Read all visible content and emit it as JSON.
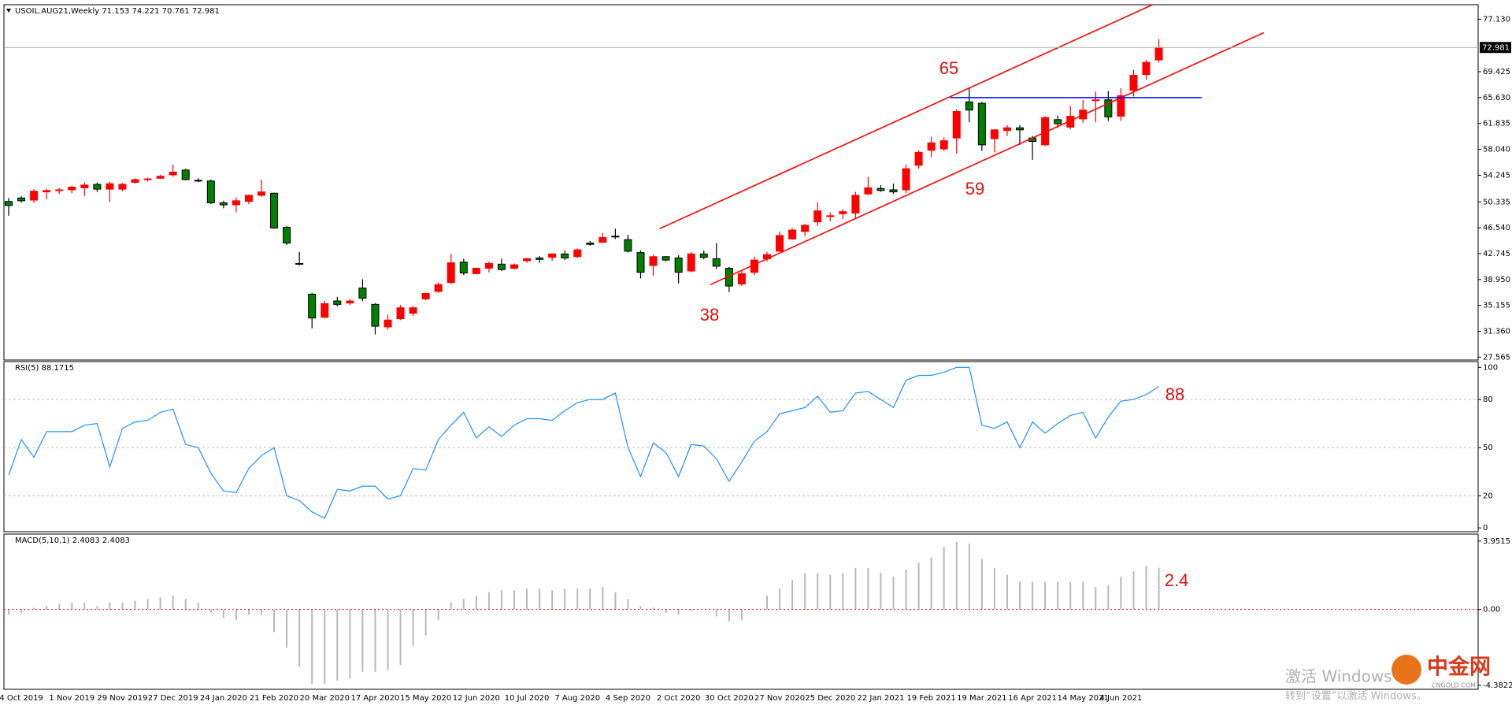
{
  "chart_data": [
    {
      "type": "candlestick",
      "title": "USOIL.AUG21,Weekly  71.153 74.221 70.761 72.981",
      "categories": [
        null,
        "4 Oct 2019",
        null,
        null,
        null,
        "1 Nov 2019",
        null,
        null,
        null,
        "29 Nov 2019",
        null,
        null,
        null,
        "27 Dec 2019",
        null,
        null,
        null,
        "24 Jan 2020",
        null,
        null,
        null,
        "21 Feb 2020",
        null,
        null,
        null,
        "20 Mar 2020",
        null,
        null,
        null,
        "17 Apr 2020",
        null,
        null,
        null,
        "15 May 2020",
        null,
        null,
        null,
        "12 Jun 2020",
        null,
        null,
        null,
        "10 Jul 2020",
        null,
        null,
        null,
        "7 Aug 2020",
        null,
        null,
        null,
        "4 Sep 2020",
        null,
        null,
        null,
        "2 Oct 2020",
        null,
        null,
        null,
        "30 Oct 2020",
        null,
        null,
        null,
        "27 Nov 2020",
        null,
        null,
        null,
        "25 Dec 2020",
        null,
        null,
        null,
        "22 Jan 2021",
        null,
        null,
        null,
        "19 Feb 2021",
        null,
        null,
        null,
        "19 Mar 2021",
        null,
        null,
        null,
        "16 Apr 2021",
        null,
        null,
        null,
        "14 May 2021",
        null,
        null,
        "4 Jun 2021",
        null,
        null,
        null
      ],
      "open": [
        50.4,
        50.9,
        50.6,
        51.8,
        52.0,
        52.1,
        52.4,
        52.9,
        52.2,
        52.2,
        53.2,
        53.6,
        53.8,
        54.3,
        55.0,
        53.5,
        53.4,
        50.2,
        49.9,
        50.4,
        51.3,
        51.6,
        46.6,
        41.3,
        36.8,
        33.4,
        35.8,
        35.5,
        37.7,
        35.3,
        32.0,
        33.2,
        34.0,
        36.1,
        37.2,
        38.5,
        41.5,
        39.8,
        40.6,
        41.2,
        40.6,
        41.7,
        42.1,
        42.2,
        42.7,
        42.3,
        44.3,
        44.4,
        45.3,
        44.8,
        42.9,
        41.0,
        42.3,
        42.1,
        40.2,
        42.7,
        42.0,
        40.6,
        38.3,
        40.0,
        42.0,
        43.1,
        44.9,
        46.0,
        47.4,
        48.2,
        48.6,
        48.7,
        51.5,
        52.3,
        52.1,
        52.1,
        55.7,
        57.9,
        58.1,
        59.7,
        65.0,
        64.8,
        59.6,
        60.8,
        61.2,
        59.7,
        58.7,
        62.4,
        61.3,
        62.5,
        65.2,
        65.3,
        62.9,
        66.7,
        69.0,
        71.153
      ],
      "high": [
        50.9,
        51.2,
        52.2,
        52.3,
        52.4,
        52.7,
        53.2,
        53.2,
        53.3,
        53.1,
        53.8,
        53.9,
        54.3,
        55.8,
        55.2,
        53.8,
        53.6,
        50.5,
        51.0,
        51.4,
        53.6,
        51.7,
        46.8,
        43.0,
        37.0,
        35.8,
        36.4,
        36.1,
        39.0,
        35.5,
        33.8,
        35.2,
        35.1,
        37.0,
        38.5,
        42.7,
        42.0,
        40.7,
        41.6,
        42.0,
        41.3,
        42.1,
        42.4,
        42.8,
        43.2,
        43.5,
        44.6,
        45.8,
        46.4,
        45.5,
        43.2,
        42.6,
        42.4,
        42.5,
        43.0,
        43.2,
        44.3,
        40.8,
        40.3,
        42.3,
        43.0,
        46.0,
        46.5,
        47.1,
        50.3,
        48.8,
        49.3,
        51.8,
        54.0,
        52.8,
        53.0,
        55.8,
        57.9,
        59.9,
        59.8,
        63.9,
        67.0,
        65.0,
        61.0,
        61.6,
        61.6,
        60.0,
        62.9,
        63.0,
        64.4,
        65.3,
        66.5,
        66.6,
        67.0,
        69.7,
        71.2,
        74.221
      ],
      "low": [
        48.3,
        50.2,
        50.2,
        50.7,
        51.5,
        51.6,
        51.2,
        51.8,
        50.3,
        51.9,
        53.0,
        53.3,
        53.7,
        54.0,
        53.5,
        53.2,
        50.0,
        49.4,
        48.8,
        50.0,
        51.1,
        46.4,
        44.0,
        41.0,
        31.8,
        33.3,
        35.0,
        35.2,
        35.8,
        30.9,
        31.6,
        33.0,
        33.6,
        35.9,
        37.0,
        38.3,
        39.6,
        39.7,
        40.0,
        40.2,
        40.4,
        41.4,
        41.4,
        41.7,
        41.8,
        42.1,
        43.9,
        44.4,
        44.9,
        42.9,
        39.1,
        39.5,
        41.6,
        38.4,
        40.0,
        41.9,
        40.5,
        37.1,
        38.0,
        39.6,
        41.6,
        43.0,
        44.8,
        45.3,
        46.8,
        47.5,
        47.8,
        47.9,
        51.3,
        51.8,
        51.5,
        51.6,
        55.2,
        56.9,
        57.8,
        57.4,
        62.0,
        57.8,
        57.6,
        60.0,
        58.7,
        56.5,
        58.5,
        61.2,
        61.0,
        61.9,
        62.0,
        62.2,
        62.2,
        65.8,
        68.2,
        70.761
      ],
      "close": [
        49.8,
        50.5,
        51.9,
        52.0,
        52.1,
        52.5,
        52.8,
        52.2,
        53.0,
        52.9,
        53.6,
        53.7,
        54.1,
        54.7,
        53.6,
        53.4,
        50.2,
        49.9,
        50.5,
        51.3,
        51.8,
        46.5,
        44.3,
        41.2,
        33.3,
        35.4,
        35.3,
        35.8,
        36.2,
        32.1,
        33.0,
        34.8,
        34.8,
        36.9,
        38.2,
        41.4,
        39.9,
        40.6,
        41.3,
        40.4,
        41.1,
        42.0,
        41.9,
        42.7,
        42.1,
        43.3,
        44.1,
        45.1,
        45.2,
        43.1,
        40.0,
        42.3,
        41.8,
        40.0,
        42.7,
        42.2,
        40.9,
        38.0,
        39.8,
        41.8,
        42.6,
        45.4,
        46.2,
        46.9,
        49.0,
        48.3,
        48.9,
        51.3,
        52.4,
        52.0,
        51.8,
        55.2,
        57.6,
        59.0,
        59.3,
        63.6,
        63.8,
        58.7,
        60.9,
        61.2,
        60.9,
        59.2,
        62.7,
        61.8,
        62.9,
        63.8,
        65.3,
        62.8,
        65.9,
        68.9,
        70.8,
        72.981
      ],
      "up_color": "#ff0000",
      "down_color": "#008000",
      "ylim": [
        27.14,
        79.25
      ],
      "yticks": [
        {
          "value": 77.13,
          "label": "77.130"
        },
        69.425,
        {
          "value": 65.63,
          "label": "65.630"
        },
        61.835,
        {
          "value": 58.04,
          "label": "58.040"
        },
        54.245,
        50.335,
        {
          "value": 46.54,
          "label": "46.540"
        },
        42.745,
        {
          "value": 38.95,
          "label": "38.950"
        },
        35.155,
        {
          "value": 31.36,
          "label": "31.360"
        },
        27.565
      ],
      "last_price": 72.981,
      "trendlines": [
        {
          "color": "#ff0000",
          "x": [
            51.5,
            90.5
          ],
          "y": [
            46.4,
            79.25
          ]
        },
        {
          "color": "#ff0000",
          "x": [
            55.5,
            99.3
          ],
          "y": [
            38.18,
            75.15
          ]
        },
        {
          "color": "#0000ff",
          "x": [
            74.5,
            94.4
          ],
          "y": [
            65.63,
            65.63
          ]
        }
      ],
      "annotations": [
        65,
        59,
        38
      ]
    },
    {
      "type": "line",
      "title": "RSI(5) 88.1715",
      "color": "#1e90ff",
      "values": [
        33,
        55,
        44,
        60,
        60,
        60,
        64,
        65,
        38,
        62,
        66,
        67,
        72,
        74,
        52,
        50,
        34,
        23,
        22,
        37,
        45,
        50,
        20,
        17,
        10,
        6,
        24,
        23,
        26,
        26,
        18,
        20,
        37,
        36,
        55,
        64,
        72,
        56,
        63,
        57,
        64,
        68,
        68,
        67,
        73,
        78,
        80,
        80,
        84,
        50,
        32,
        53,
        47,
        32,
        52,
        51,
        43,
        29,
        41,
        54,
        60,
        71,
        73,
        75,
        82,
        72,
        73,
        84,
        85,
        80,
        75,
        92,
        95,
        95,
        97,
        100,
        100,
        64,
        62,
        66,
        50,
        66,
        59,
        65,
        70,
        72,
        56,
        69,
        79,
        80,
        83,
        88.1715
      ],
      "ylim": [
        -2.4,
        103.6
      ],
      "yticks": [
        100,
        80,
        50,
        20,
        0
      ],
      "levels": [
        80,
        50,
        20
      ],
      "annotations": [
        88
      ]
    },
    {
      "type": "bar",
      "title": "MACD(5,10,1) 2.4083 2.4083",
      "color": "#b8b8b8",
      "values": [
        -0.3,
        -0.2,
        0.1,
        0.2,
        0.3,
        0.4,
        0.4,
        0.2,
        0.4,
        0.4,
        0.5,
        0.6,
        0.7,
        0.8,
        0.6,
        0.4,
        -0.2,
        -0.5,
        -0.6,
        -0.3,
        -0.3,
        -1.3,
        -2.2,
        -3.3,
        -4.3,
        -4.3,
        -4.1,
        -4.0,
        -3.6,
        -3.6,
        -3.5,
        -3.2,
        -2.1,
        -1.5,
        -0.6,
        0.4,
        0.6,
        0.8,
        1.0,
        1.1,
        1.1,
        1.2,
        1.2,
        1.1,
        1.2,
        1.2,
        1.2,
        1.3,
        1.0,
        0.6,
        0.2,
        0.1,
        -0.2,
        -0.3,
        -0.1,
        0.0,
        -0.4,
        -0.7,
        -0.6,
        0.0,
        0.8,
        1.2,
        1.7,
        2.1,
        2.1,
        2.0,
        2.1,
        2.4,
        2.4,
        2.1,
        1.9,
        2.3,
        2.7,
        3.0,
        3.6,
        3.9,
        3.8,
        2.9,
        2.4,
        2.0,
        1.6,
        1.6,
        1.6,
        1.6,
        1.6,
        1.6,
        1.3,
        1.4,
        1.9,
        2.2,
        2.5,
        2.4083
      ],
      "ylim": [
        -4.61,
        4.35
      ],
      "yticks": [
        3.9515,
        {
          "value": 0,
          "label": "0.00"
        },
        -4.3822
      ],
      "annotations": [
        2.4
      ]
    }
  ],
  "watermark": {
    "activate": "激活 Windows",
    "hint": "转到“设置”以激活 Windows。",
    "logo": "中金网",
    "logo_sub": "CNGOLD.COM"
  }
}
